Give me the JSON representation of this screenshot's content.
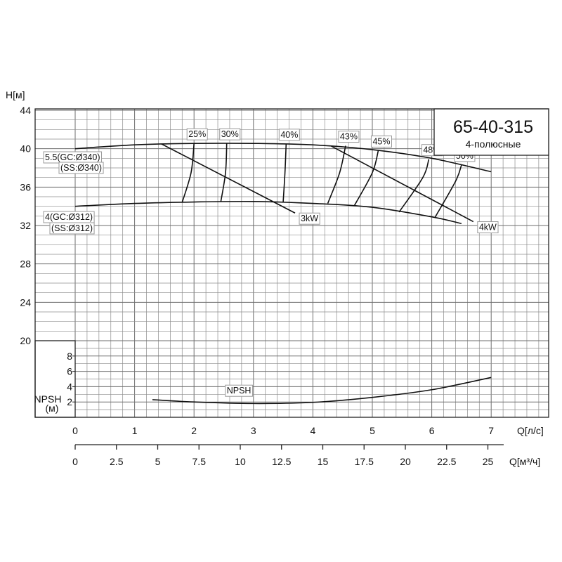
{
  "header": {
    "title": "65-40-315",
    "subtitle": "4-полюсные"
  },
  "chart_data": {
    "type": "line",
    "head_axis": {
      "label": "H[м]",
      "ticks": [
        20,
        24,
        28,
        32,
        36,
        40,
        44
      ],
      "range": [
        20,
        44
      ]
    },
    "npsh_axis": {
      "label_line1": "NPSH",
      "label_line2": "(м)",
      "ticks": [
        2,
        4,
        6,
        8
      ],
      "range": [
        0,
        10
      ]
    },
    "flow_axis_ls": {
      "label": "Q[л/с]",
      "ticks": [
        "0",
        "1",
        "2",
        "3",
        "4",
        "5",
        "6",
        "7"
      ],
      "range": [
        0,
        8
      ]
    },
    "flow_axis_m3h": {
      "label": "Q[м³/ч]",
      "ticks": [
        "0",
        "2.5",
        "5",
        "7.5",
        "10",
        "12.5",
        "15",
        "17.5",
        "20",
        "22.5",
        "25"
      ]
    },
    "series": [
      {
        "name": "5.5(GC:Ø340)",
        "name_line2": "(SS:Ø340)",
        "x": [
          0,
          1,
          2,
          3,
          4,
          5,
          6,
          7
        ],
        "y": [
          40.0,
          40.4,
          40.55,
          40.55,
          40.4,
          39.9,
          39.0,
          37.6
        ]
      },
      {
        "name": "4(GC:Ø312)",
        "name_line2": "(SS:Ø312)",
        "x": [
          0,
          1,
          2,
          3,
          4,
          5,
          6,
          6.5
        ],
        "y": [
          34.0,
          34.3,
          34.45,
          34.5,
          34.3,
          33.9,
          32.9,
          32.2
        ]
      }
    ],
    "efficiency_lines": [
      {
        "label": "25%",
        "points": [
          [
            1.8,
            34.4
          ],
          [
            1.95,
            37.5
          ],
          [
            2.0,
            40.55
          ]
        ]
      },
      {
        "label": "30%",
        "points": [
          [
            2.45,
            34.45
          ],
          [
            2.53,
            37.5
          ],
          [
            2.55,
            40.55
          ]
        ]
      },
      {
        "label": "40%",
        "points": [
          [
            3.5,
            34.45
          ],
          [
            3.53,
            37.5
          ],
          [
            3.55,
            40.5
          ]
        ]
      },
      {
        "label": "43%",
        "points": [
          [
            4.25,
            34.3
          ],
          [
            4.45,
            37.5
          ],
          [
            4.55,
            40.3
          ]
        ]
      },
      {
        "label": "45%",
        "points": [
          [
            4.7,
            34.1
          ],
          [
            5.0,
            37.5
          ],
          [
            5.1,
            39.8
          ]
        ]
      },
      {
        "label": "48%",
        "points": [
          [
            5.45,
            33.4
          ],
          [
            5.85,
            37.0
          ],
          [
            5.95,
            38.9
          ]
        ]
      },
      {
        "label": "50%",
        "points": [
          [
            6.05,
            32.8
          ],
          [
            6.4,
            36.6
          ],
          [
            6.5,
            38.3
          ]
        ]
      }
    ],
    "power_lines": [
      {
        "label": "3kW",
        "points": [
          [
            1.45,
            40.5
          ],
          [
            3.7,
            33.3
          ]
        ]
      },
      {
        "label": "4kW",
        "points": [
          [
            4.3,
            40.3
          ],
          [
            6.7,
            32.4
          ]
        ]
      }
    ],
    "npsh_curve": {
      "label": "NPSH",
      "x": [
        1.3,
        2,
        3,
        4,
        5,
        6,
        7
      ],
      "y": [
        2.3,
        2.0,
        1.8,
        1.95,
        2.6,
        3.6,
        5.2
      ]
    },
    "grid": true
  }
}
